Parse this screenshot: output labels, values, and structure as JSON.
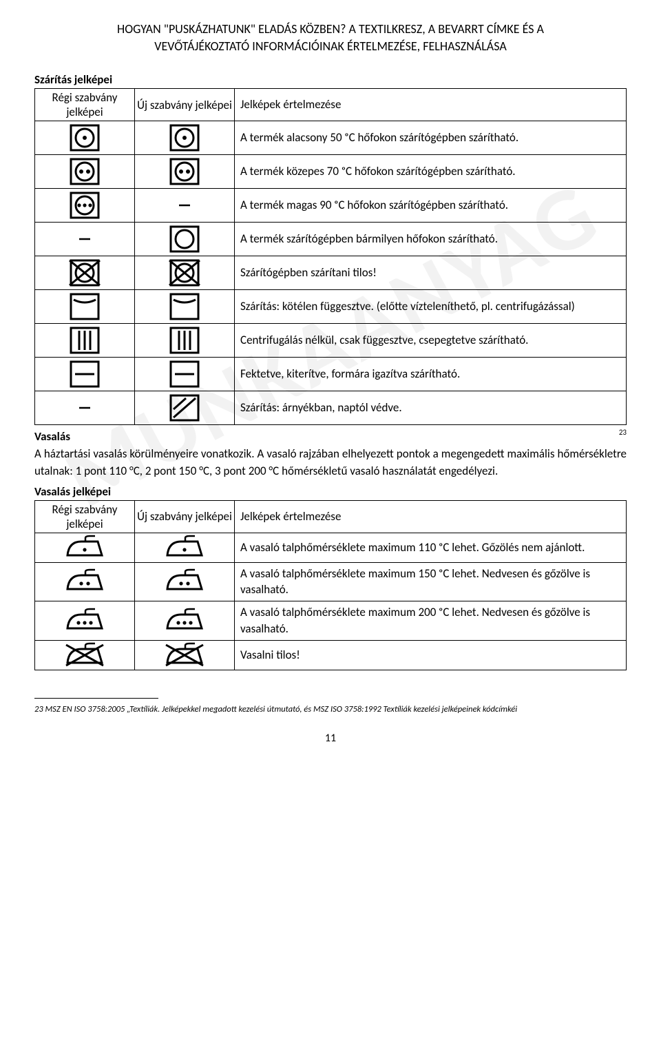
{
  "header": {
    "line1": "HOGYAN \"PUSKÁZHATUNK\" ELADÁS KÖZBEN? A TEXTILKRESZ, A BEVARRT CÍMKE ÉS A",
    "line2": "VEVŐTÁJÉKOZTATÓ INFORMÁCIÓINAK ÉRTELMEZÉSE, FELHASZNÁLÁSA"
  },
  "watermark": "MUNKAANYAG",
  "drying": {
    "section_title": "Szárítás jelképei",
    "col_old": "Régi szabvány jelképei",
    "col_new": "Új szabvány jelképei",
    "col_desc": "Jelképek értelmezése",
    "rows": [
      {
        "old": "dot1",
        "new": "dot1",
        "desc": "A termék alacsony 50 ᵒC hőfokon szárítógépben szárítható."
      },
      {
        "old": "dot2",
        "new": "dot2",
        "desc": "A termék közepes 70 ᵒC hőfokon szárítógépben szárítható."
      },
      {
        "old": "dot3",
        "new": "dash",
        "desc": "A termék magas 90 ᵒC hőfokon szárítógépben szárítható."
      },
      {
        "old": "dash",
        "new": "circle",
        "desc": "A termék szárítógépben bármilyen hőfokon szárítható."
      },
      {
        "old": "cross",
        "new": "cross",
        "desc": "Szárítógépben szárítani tilos!"
      },
      {
        "old": "hang",
        "new": "hang",
        "desc": "Szárítás: kötélen függesztve. (előtte vízteleníthető, pl. centrifugázással)"
      },
      {
        "old": "drip",
        "new": "drip",
        "desc": "Centrifugálás nélkül, csak függesztve, csepegtetve szárítható."
      },
      {
        "old": "flat",
        "new": "flat",
        "desc": "Fektetve, kiterítve, formára igazítva szárítható."
      },
      {
        "old": "dash",
        "new": "shade",
        "desc": "Szárítás: árnyékban, naptól védve."
      }
    ]
  },
  "ironing": {
    "heading": "Vasalás",
    "paragraph": "A háztartási vasalás körülményeire vonatkozik. A vasaló rajzában elhelyezett pontok a megengedett maximális hőmérsékletre utalnak: 1 pont 110 °C, 2 pont 150 °C, 3 pont 200 °C hőmérsékletű vasaló használatát engedélyezi.",
    "section_title": "Vasalás jelképei",
    "col_old": "Régi szabvány jelképei",
    "col_new": "Új szabvány jelképei",
    "col_desc": "Jelképek értelmezése",
    "rows": [
      {
        "old": "iron1",
        "new": "iron1",
        "desc": "A vasaló talphőmérséklete maximum 110 ᵒC lehet. Gőzölés nem ajánlott."
      },
      {
        "old": "iron2",
        "new": "iron2",
        "desc": "A vasaló talphőmérséklete maximum 150 ᵒC lehet. Nedvesen és gőzölve is vasalható."
      },
      {
        "old": "iron3",
        "new": "iron3",
        "desc": "A vasaló talphőmérséklete maximum 200 ᵒC lehet. Nedvesen és gőzölve is vasalható."
      },
      {
        "old": "ironx",
        "new": "ironx",
        "desc": "Vasalni tilos!"
      }
    ]
  },
  "footnote": {
    "ref": "23",
    "text": "23 MSZ EN ISO 3758:2005 „Textíliák. Jelképekkel megadott kezelési útmutató, és MSZ ISO 3758:1992 Textíliák kezelési jelképeinek kódcímkéi"
  },
  "pagenum": "11"
}
